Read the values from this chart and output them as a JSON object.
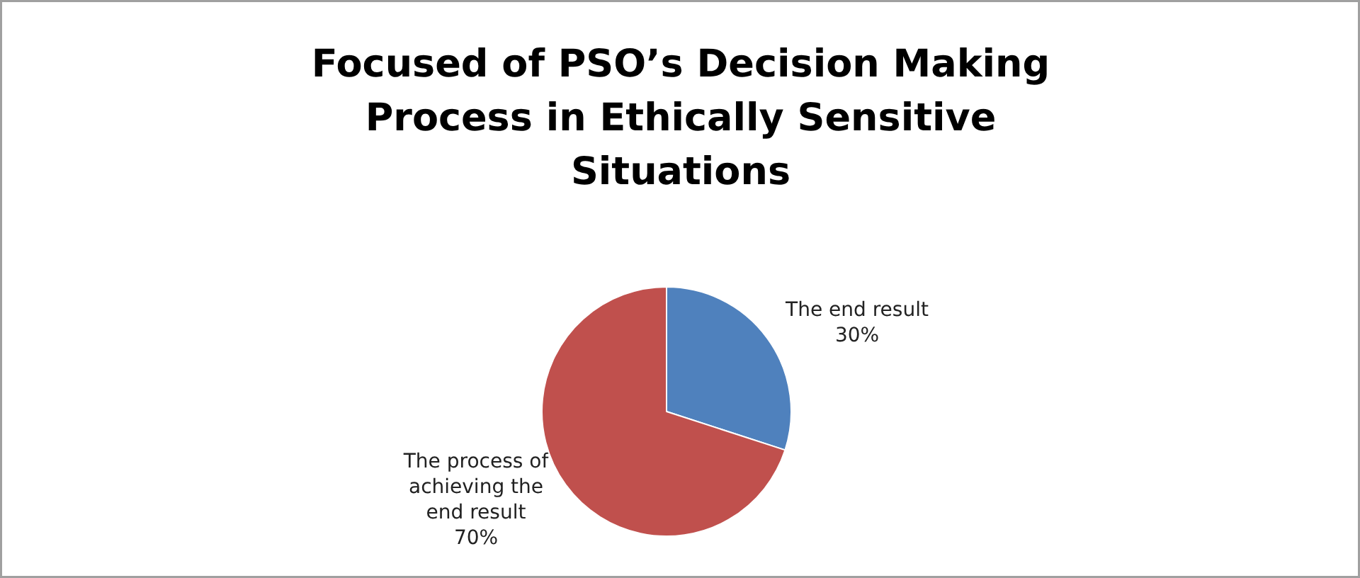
{
  "chart_data": {
    "type": "pie",
    "title": "Focused of PSO’s Decision Making Process in Ethically Sensitive Situations",
    "categories": [
      "The end result",
      "The process of achieving the end result"
    ],
    "values": [
      30,
      70
    ],
    "value_labels": [
      "30%",
      "70%"
    ],
    "colors": [
      "#4f81bd",
      "#c0504d"
    ]
  }
}
